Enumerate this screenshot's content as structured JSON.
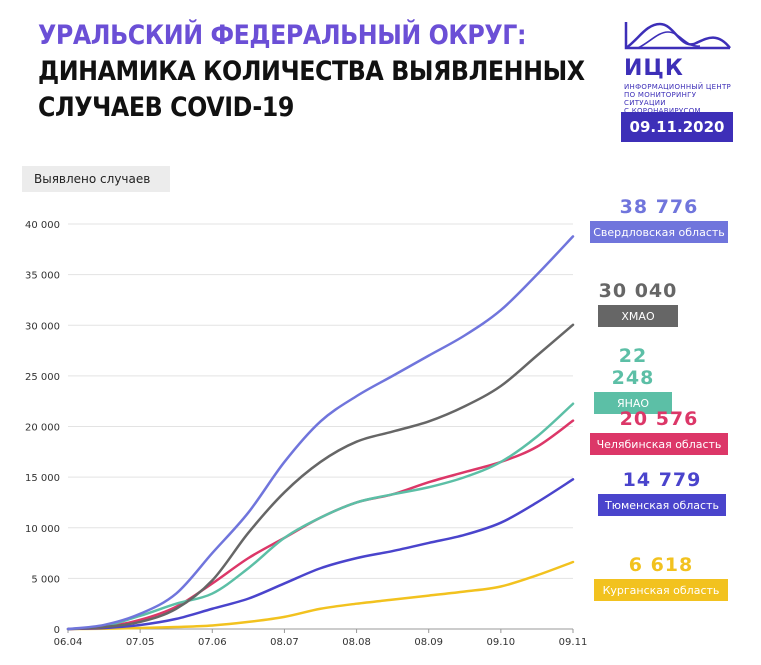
{
  "header": {
    "title_line1": "УРАЛЬСКИЙ ФЕДЕРАЛЬНЫЙ ОКРУГ:",
    "title_line2": "ДИНАМИКА КОЛИЧЕСТВА ВЫЯВЛЕННЫХ",
    "title_line3": "СЛУЧАЕВ COVID-19"
  },
  "logo": {
    "abbr": "ИЦК",
    "sub_line1": "ИНФОРМАЦИОННЫЙ ЦЕНТР",
    "sub_line2": "ПО МОНИТОРИНГУ СИТУАЦИИ",
    "sub_line3": "С КОРОНАВИРУСОМ",
    "color": "#3d2fb8"
  },
  "date": "09.11.2020",
  "chart_data": {
    "type": "line",
    "ylabel": "Выявлено случаев",
    "ylim": [
      0,
      40000
    ],
    "yticks": [
      0,
      5000,
      10000,
      15000,
      20000,
      25000,
      30000,
      35000,
      40000
    ],
    "ytick_labels": [
      "0",
      "5 000",
      "10 000",
      "15 000",
      "20 000",
      "25 000",
      "30 000",
      "35 000",
      "40 000"
    ],
    "xtick_labels": [
      "06.04",
      "07.05",
      "07.06",
      "08.07",
      "08.08",
      "08.09",
      "09.10",
      "09.11"
    ],
    "x": [
      "06.04",
      "21.04",
      "07.05",
      "22.05",
      "07.06",
      "23.06",
      "08.07",
      "23.07",
      "08.08",
      "23.08",
      "08.09",
      "24.09",
      "09.10",
      "25.10",
      "09.11"
    ],
    "grid": "horizontal",
    "series": [
      {
        "name": "Свердловская область",
        "color": "#7075dc",
        "value_label": "38 776",
        "values": [
          0,
          400,
          1500,
          3500,
          7500,
          11500,
          16500,
          20500,
          23000,
          25000,
          27000,
          29000,
          31500,
          35000,
          38776
        ]
      },
      {
        "name": "ХМАО",
        "color": "#666666",
        "value_label": "30 040",
        "values": [
          0,
          200,
          700,
          2000,
          4800,
          9500,
          13500,
          16500,
          18500,
          19500,
          20500,
          22000,
          24000,
          27000,
          30040
        ]
      },
      {
        "name": "ЯНАО",
        "color": "#5cbfa6",
        "value_label": "22 248",
        "values": [
          0,
          300,
          1300,
          2500,
          3500,
          6000,
          9000,
          11000,
          12500,
          13300,
          14000,
          15000,
          16500,
          19000,
          22248
        ]
      },
      {
        "name": "Челябинская область",
        "color": "#dc3768",
        "value_label": "20 576",
        "values": [
          0,
          200,
          900,
          2200,
          4500,
          7000,
          9000,
          11000,
          12500,
          13300,
          14500,
          15500,
          16500,
          18000,
          20576
        ]
      },
      {
        "name": "Тюменская область",
        "color": "#4a44cc",
        "value_label": "14 779",
        "values": [
          0,
          100,
          400,
          1000,
          2000,
          3000,
          4500,
          6000,
          7000,
          7700,
          8500,
          9300,
          10500,
          12500,
          14779
        ]
      },
      {
        "name": "Курганская область",
        "color": "#f2c21f",
        "value_label": "6 618",
        "values": [
          0,
          30,
          100,
          200,
          350,
          700,
          1200,
          2000,
          2500,
          2900,
          3300,
          3700,
          4200,
          5300,
          6618
        ]
      }
    ]
  }
}
